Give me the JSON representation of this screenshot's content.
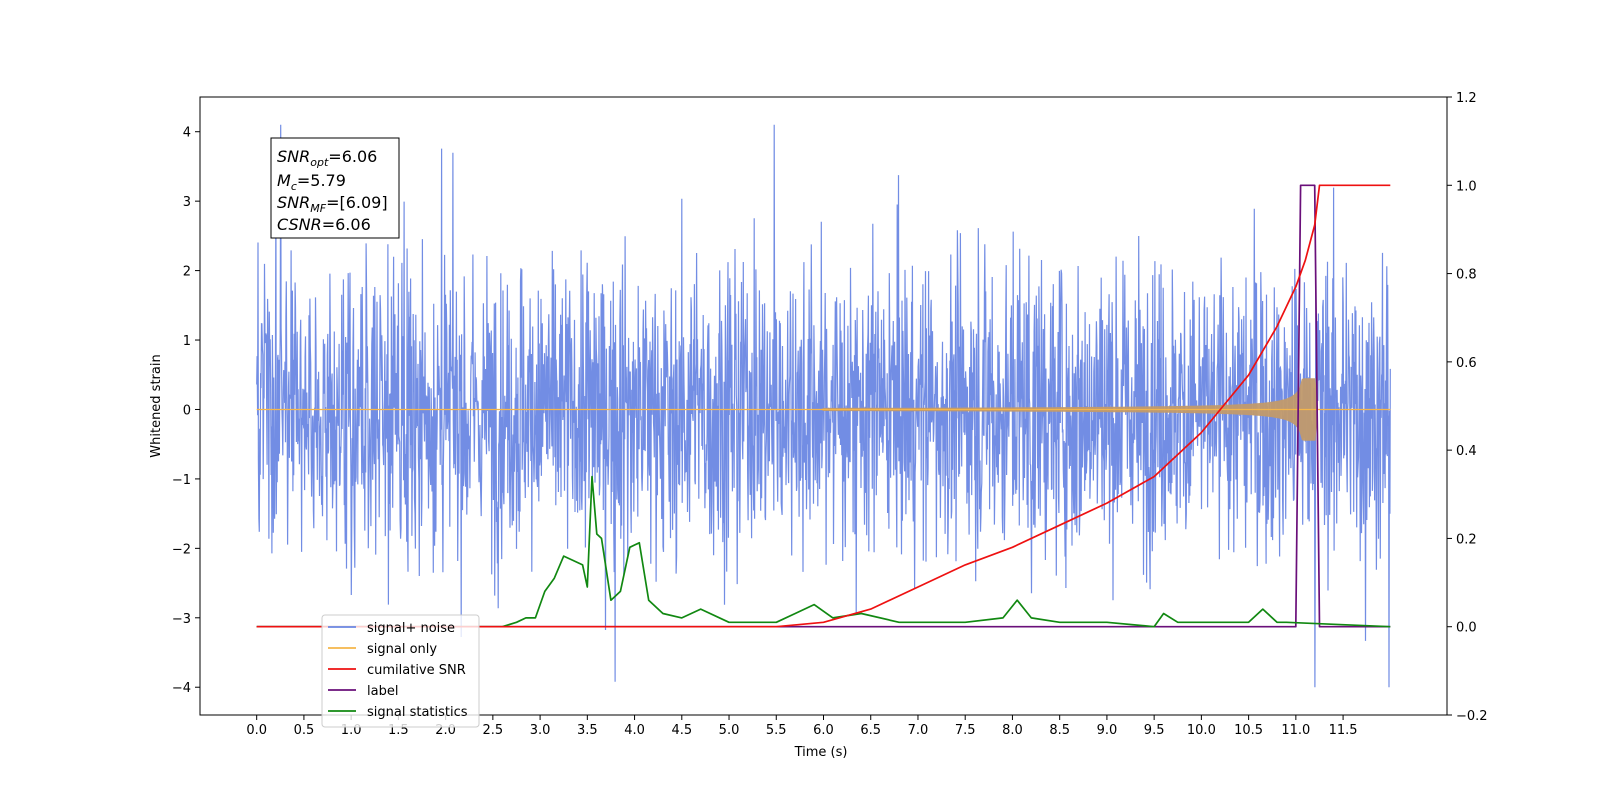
{
  "chart_data": {
    "type": "line",
    "xlabel": "Time (s)",
    "ylabel": "Whitened strain",
    "x_ticks": [
      "0.0",
      "0.5",
      "1.0",
      "1.5",
      "2.0",
      "2.5",
      "3.0",
      "3.5",
      "4.0",
      "4.5",
      "5.0",
      "5.5",
      "6.0",
      "6.5",
      "7.0",
      "7.5",
      "8.0",
      "8.5",
      "9.0",
      "9.5",
      "10.0",
      "10.5",
      "11.0",
      "11.5"
    ],
    "y_ticks": [
      "−4",
      "−3",
      "−2",
      "−1",
      "0",
      "1",
      "2",
      "3",
      "4"
    ],
    "y2_ticks": [
      "−0.2",
      "0.0",
      "0.2",
      "0.4",
      "0.6",
      "0.8",
      "1.0",
      "1.2"
    ],
    "xlim": [
      -0.6,
      12.6
    ],
    "ylim": [
      -4.4,
      4.5
    ],
    "y2lim": [
      -0.2,
      1.2
    ],
    "annotation": {
      "snr_opt": {
        "base": "SNR",
        "sub": "opt",
        "value": "=6.06"
      },
      "mc": {
        "base": "M",
        "sub": "c",
        "value": "=5.79"
      },
      "snr_mf": {
        "base": "SNR",
        "sub": "MF",
        "value": "=[6.09]"
      },
      "csnr": {
        "base": "CSNR",
        "value": "=6.06"
      }
    },
    "colors": {
      "noise": "#6a87e3",
      "signal": "#f5b64a",
      "cumulative": "#ee1111",
      "label": "#6a0f7a",
      "statistics": "#118811"
    },
    "series": [
      {
        "name": "signal+ noise",
        "t_range": [
          0.0,
          12.0
        ],
        "amplitude_envelope": [
          -4.0,
          4.1
        ]
      },
      {
        "name": "signal only",
        "t_range": [
          0.0,
          12.0
        ],
        "chirp_peak_t": 11.1,
        "peak_amplitude": 0.45
      },
      {
        "name": "cumilative SNR",
        "axis": "right",
        "x": [
          0.0,
          5.5,
          6.0,
          6.5,
          7.0,
          7.5,
          8.0,
          8.5,
          9.0,
          9.5,
          10.0,
          10.5,
          10.8,
          11.0,
          11.1,
          11.2,
          11.25,
          12.0
        ],
        "y": [
          0.0,
          0.0,
          0.01,
          0.04,
          0.09,
          0.14,
          0.18,
          0.23,
          0.28,
          0.34,
          0.44,
          0.57,
          0.68,
          0.77,
          0.83,
          0.91,
          1.0,
          1.0
        ]
      },
      {
        "name": "label",
        "axis": "right",
        "x": [
          0.0,
          11.0,
          11.05,
          11.2,
          11.25,
          11.26,
          12.0
        ],
        "y": [
          0.0,
          0.0,
          1.0,
          1.0,
          0.0,
          0.0,
          0.0
        ]
      },
      {
        "name": "signal statistics",
        "axis": "right",
        "x": [
          0.0,
          2.6,
          2.75,
          2.85,
          2.95,
          3.05,
          3.15,
          3.25,
          3.35,
          3.45,
          3.5,
          3.55,
          3.6,
          3.65,
          3.75,
          3.85,
          3.95,
          4.05,
          4.15,
          4.3,
          4.5,
          4.7,
          5.0,
          5.5,
          5.7,
          5.9,
          6.1,
          6.4,
          6.8,
          7.5,
          7.9,
          8.05,
          8.2,
          8.5,
          9.0,
          9.5,
          9.6,
          9.75,
          10.0,
          10.5,
          10.65,
          10.8,
          10.9,
          12.0
        ],
        "y": [
          0.0,
          0.0,
          0.01,
          0.02,
          0.02,
          0.08,
          0.11,
          0.16,
          0.15,
          0.14,
          0.09,
          0.34,
          0.21,
          0.2,
          0.06,
          0.08,
          0.18,
          0.19,
          0.06,
          0.03,
          0.02,
          0.04,
          0.01,
          0.01,
          0.03,
          0.05,
          0.02,
          0.03,
          0.01,
          0.01,
          0.02,
          0.06,
          0.02,
          0.01,
          0.01,
          0.0,
          0.03,
          0.01,
          0.01,
          0.01,
          0.04,
          0.01,
          0.01,
          0.0
        ]
      }
    ],
    "legend": {
      "placement": "bottom-left",
      "entries": [
        "signal+ noise",
        "signal only",
        "cumilative SNR",
        "label",
        "signal statistics"
      ]
    },
    "grid": false
  }
}
